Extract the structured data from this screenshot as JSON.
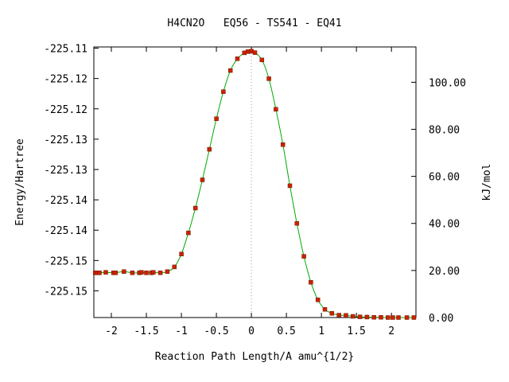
{
  "chart_data": {
    "type": "line",
    "title": "H4CN2O   EQ56 - TS541 - EQ41",
    "xlabel": "Reaction Path Length/A amu^{1/2}",
    "ylabel": "Energy/Hartree",
    "y2label": "kJ/mol",
    "xlim": [
      -2.25,
      2.35
    ],
    "ylim": [
      -225.1544,
      -225.1098
    ],
    "y2lim": [
      0,
      115
    ],
    "x_ticks": [
      -2,
      -1.5,
      -1,
      -0.5,
      0,
      0.5,
      1,
      1.5,
      2
    ],
    "x_tick_labels": [
      "-2",
      "-1.5",
      "-1",
      "-0.5",
      "0",
      "0.5",
      "1",
      "1.5",
      "2"
    ],
    "y_ticks": [
      -225.11,
      -225.115,
      -225.12,
      -225.125,
      -225.13,
      -225.135,
      -225.14,
      -225.145,
      -225.15
    ],
    "y_tick_labels": [
      "-225.11",
      "-225.12",
      "-225.12",
      "-225.13",
      "-225.13",
      "-225.14",
      "-225.14",
      "-225.15",
      "-225.15"
    ],
    "y2_ticks": [
      0,
      20,
      40,
      60,
      80,
      100
    ],
    "y2_tick_labels": [
      "0.00",
      "20.00",
      "40.00",
      "60.00",
      "80.00",
      "100.00"
    ],
    "grid": false,
    "ts_marker_x": 0,
    "line_color": "#00aa00",
    "point_color": "#cc2200",
    "series": [
      {
        "x": [
          -2.23,
          -2.2,
          -2.17,
          -2.08,
          -1.97,
          -1.94,
          -1.82,
          -1.7,
          -1.6,
          -1.57,
          -1.5,
          -1.43,
          -1.4,
          -1.3,
          -1.2,
          -1.1,
          -1.0,
          -0.9,
          -0.8,
          -0.7,
          -0.6,
          -0.5,
          -0.4,
          -0.3,
          -0.2,
          -0.1,
          -0.05,
          0.0,
          0.05,
          0.15,
          0.25,
          0.35,
          0.45,
          0.55,
          0.65,
          0.75,
          0.85,
          0.95,
          1.05,
          1.15,
          1.25,
          1.35,
          1.45,
          1.55,
          1.65,
          1.75,
          1.85,
          1.95,
          2.02,
          2.1,
          2.22,
          2.32
        ],
        "y": [
          19.0,
          19.0,
          19.0,
          19.2,
          19.0,
          19.0,
          19.5,
          19.0,
          19.0,
          19.2,
          19.0,
          19.0,
          19.2,
          19.0,
          19.5,
          21.5,
          27.0,
          36.0,
          46.5,
          58.5,
          71.5,
          84.5,
          96.0,
          105.0,
          110.0,
          112.5,
          113.0,
          113.2,
          112.6,
          109.5,
          101.5,
          88.5,
          73.5,
          56.0,
          40.0,
          26.0,
          15.0,
          7.5,
          3.5,
          1.8,
          1.0,
          0.9,
          0.5,
          0.3,
          0.2,
          0.1,
          0.1,
          0.0,
          0.0,
          0.0,
          0.0,
          0.0
        ]
      }
    ]
  }
}
